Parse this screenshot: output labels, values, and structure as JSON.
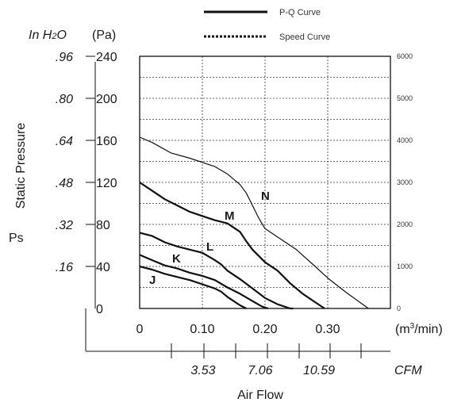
{
  "chart_data": {
    "type": "line",
    "legend": {
      "placement": "top",
      "entries": [
        {
          "label": "P-Q Curve",
          "style": "solid"
        },
        {
          "label": "Speed Curve",
          "style": "dotted"
        }
      ]
    },
    "ylabel": "Static Pressure",
    "ylabel_symbol": "Ps",
    "y_unit_left_inh2o": "In H2O",
    "y_unit_left_pa": "(Pa)",
    "xlabel": "Air Flow",
    "x_unit": "(m³/min)",
    "x_unit_cfm": "CFM",
    "xlim": [
      0,
      0.4
    ],
    "ylim": [
      0,
      240
    ],
    "y2lim": [
      0,
      6000
    ],
    "grid": true,
    "y_ticks_pa": [
      "0",
      "40",
      "80",
      "120",
      "160",
      "200",
      "240"
    ],
    "y_ticks_inh2o": [
      ".16",
      ".32",
      ".48",
      ".64",
      ".80",
      ".96"
    ],
    "y2_ticks": [
      "0",
      "1000",
      "2000",
      "3000",
      "4000",
      "5000",
      "6000"
    ],
    "x_ticks": [
      "0",
      "0.10",
      "0.20",
      "0.30"
    ],
    "cfm_ticks": [
      "3.53",
      "7.06",
      "10.59"
    ],
    "series": [
      {
        "name": "N",
        "line": "pq",
        "x": [
          0,
          0.02,
          0.05,
          0.08,
          0.1,
          0.12,
          0.14,
          0.16,
          0.17,
          0.18,
          0.19,
          0.2,
          0.22,
          0.25,
          0.28,
          0.3,
          0.33,
          0.365
        ],
        "y": [
          163,
          158,
          148,
          143,
          139,
          135,
          128,
          118,
          110,
          98,
          86,
          76,
          68,
          56,
          40,
          29,
          15,
          0
        ]
      },
      {
        "name": "M",
        "line": "pq",
        "x": [
          0,
          0.02,
          0.04,
          0.06,
          0.08,
          0.1,
          0.12,
          0.14,
          0.16,
          0.17,
          0.18,
          0.2,
          0.22,
          0.24,
          0.26,
          0.28,
          0.295
        ],
        "y": [
          120,
          112,
          104,
          98,
          92,
          88,
          84,
          81,
          73,
          64,
          56,
          44,
          36,
          24,
          14,
          6,
          0
        ]
      },
      {
        "name": "L",
        "line": "pq",
        "x": [
          0,
          0.02,
          0.04,
          0.06,
          0.08,
          0.1,
          0.12,
          0.13,
          0.14,
          0.16,
          0.18,
          0.2,
          0.22,
          0.24,
          0.245
        ],
        "y": [
          72,
          69,
          63,
          59,
          56,
          53,
          46,
          42,
          36,
          28,
          19,
          10,
          4,
          0,
          0
        ]
      },
      {
        "name": "K",
        "line": "pq",
        "x": [
          0,
          0.02,
          0.04,
          0.06,
          0.08,
          0.1,
          0.12,
          0.14,
          0.16,
          0.18,
          0.195,
          0.205
        ],
        "y": [
          51,
          46,
          41,
          38,
          34,
          31,
          27,
          20,
          14,
          7,
          2,
          0
        ]
      },
      {
        "name": "J",
        "line": "pq",
        "x": [
          0,
          0.02,
          0.04,
          0.06,
          0.08,
          0.1,
          0.12,
          0.13,
          0.14,
          0.15,
          0.16,
          0.17
        ],
        "y": [
          40,
          37,
          33,
          30,
          27,
          23,
          19,
          16,
          11,
          7,
          3,
          0
        ]
      }
    ]
  }
}
